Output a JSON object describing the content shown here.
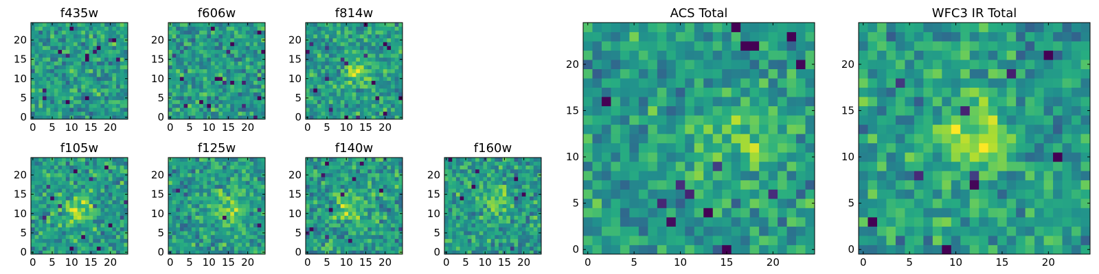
{
  "chart_data": [
    {
      "type": "heatmap",
      "title": "f435w",
      "cols": 25,
      "rows": 25,
      "xticks": [
        0,
        5,
        10,
        15,
        20
      ],
      "yticks": [
        0,
        5,
        10,
        15,
        20
      ],
      "values": [],
      "colormap": "viridis",
      "grid": false
    },
    {
      "type": "heatmap",
      "title": "f606w",
      "cols": 25,
      "rows": 25,
      "xticks": [
        0,
        5,
        10,
        15,
        20
      ],
      "yticks": [
        0,
        5,
        10,
        15,
        20
      ],
      "values": [],
      "colormap": "viridis",
      "grid": false
    },
    {
      "type": "heatmap",
      "title": "f814w",
      "cols": 25,
      "rows": 25,
      "xticks": [
        0,
        5,
        10,
        15,
        20
      ],
      "yticks": [
        0,
        5,
        10,
        15,
        20
      ],
      "values": [],
      "colormap": "viridis",
      "grid": false
    },
    {
      "type": "heatmap",
      "title": "f105w",
      "cols": 25,
      "rows": 25,
      "xticks": [
        0,
        5,
        10,
        15,
        20
      ],
      "yticks": [
        0,
        5,
        10,
        15,
        20
      ],
      "values": [],
      "colormap": "viridis",
      "grid": false
    },
    {
      "type": "heatmap",
      "title": "f125w",
      "cols": 25,
      "rows": 25,
      "xticks": [
        0,
        5,
        10,
        15,
        20
      ],
      "yticks": [
        0,
        5,
        10,
        15,
        20
      ],
      "values": [],
      "colormap": "viridis",
      "grid": false
    },
    {
      "type": "heatmap",
      "title": "f140w",
      "cols": 25,
      "rows": 25,
      "xticks": [
        0,
        5,
        10,
        15,
        20
      ],
      "yticks": [
        0,
        5,
        10,
        15,
        20
      ],
      "values": [],
      "colormap": "viridis",
      "grid": false
    },
    {
      "type": "heatmap",
      "title": "f160w",
      "cols": 25,
      "rows": 25,
      "xticks": [
        0,
        5,
        10,
        15,
        20
      ],
      "yticks": [
        0,
        5,
        10,
        15,
        20
      ],
      "values": [],
      "colormap": "viridis",
      "grid": false
    },
    {
      "type": "heatmap",
      "title": "ACS Total",
      "cols": 25,
      "rows": 25,
      "xticks": [
        0,
        5,
        10,
        15,
        20
      ],
      "yticks": [
        0,
        5,
        10,
        15,
        20
      ],
      "values": [],
      "colormap": "viridis",
      "grid": false
    },
    {
      "type": "heatmap",
      "title": "WFC3 IR Total",
      "cols": 25,
      "rows": 25,
      "xticks": [
        0,
        5,
        10,
        15,
        20
      ],
      "yticks": [
        0,
        5,
        10,
        15,
        20
      ],
      "values": [],
      "colormap": "viridis",
      "grid": false
    }
  ]
}
